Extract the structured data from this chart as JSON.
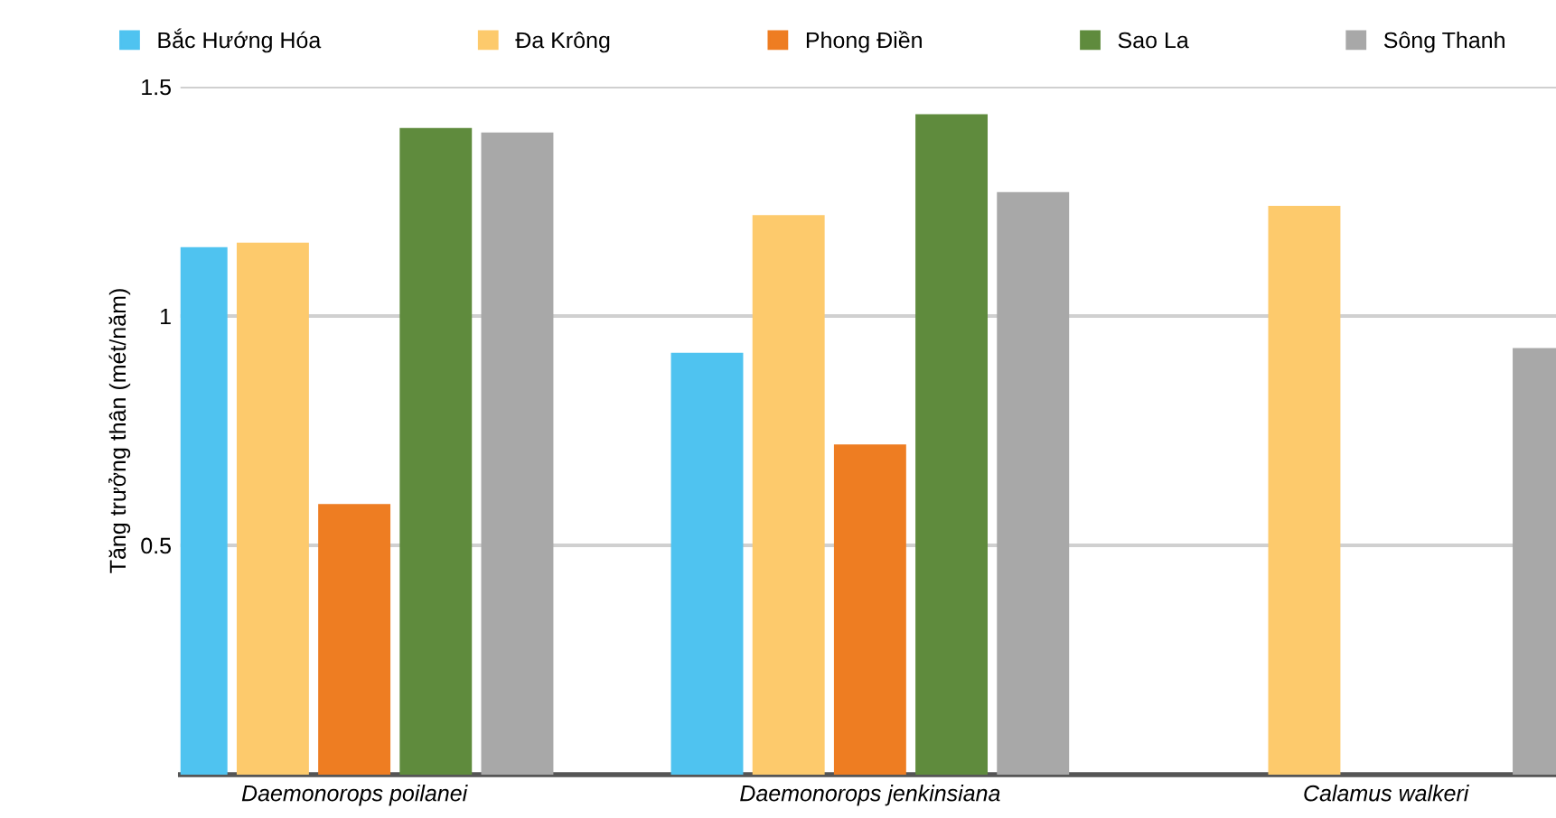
{
  "chart_data": {
    "type": "bar",
    "ylabel": "Tăng trưởng thân (mét/năm)",
    "categories": [
      "Daemonorops poilanei",
      "Daemonorops jenkinsiana",
      "Calamus walkeri"
    ],
    "series": [
      {
        "name": "Bắc Hướng Hóa",
        "color": "#4fc3f0",
        "values": [
          1.15,
          0.92,
          null
        ]
      },
      {
        "name": "Đa Krông",
        "color": "#fdca6c",
        "values": [
          1.16,
          1.22,
          1.24
        ]
      },
      {
        "name": "Phong Điền",
        "color": "#ee7d22",
        "values": [
          0.59,
          0.72,
          null
        ]
      },
      {
        "name": "Sao La",
        "color": "#5f8b3d",
        "values": [
          1.41,
          1.44,
          null
        ]
      },
      {
        "name": "Sông Thanh",
        "color": "#a8a8a8",
        "values": [
          1.4,
          1.27,
          0.93
        ]
      }
    ],
    "ylim": [
      0,
      1.5
    ],
    "yticks": [
      {
        "value": 0,
        "label": null
      },
      0.5,
      1,
      1.5
    ],
    "grid": "y",
    "legend": "top"
  }
}
